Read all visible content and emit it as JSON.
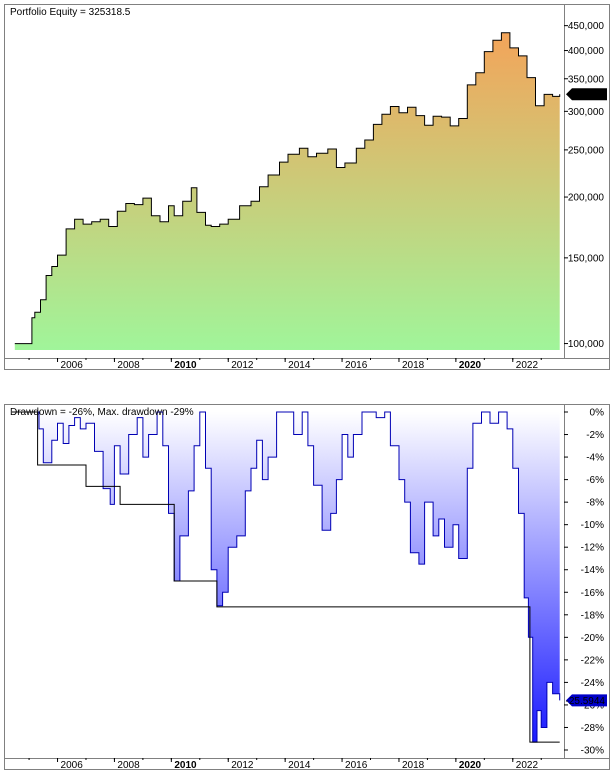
{
  "chart_data": [
    {
      "type": "area",
      "title": "Portfolio Equity = 325318.5",
      "yscale": "log",
      "ylim": [
        97000,
        480000
      ],
      "xlim": [
        2004.4,
        2023.8
      ],
      "grid": false,
      "colors": {
        "top": "#f3a45a",
        "bottom": "#a0f59a",
        "line": "#000000",
        "marker": "#000000"
      },
      "y_ticks": [
        "450,000",
        "400,000",
        "350,000",
        "300,000",
        "250,000",
        "200,000",
        "150,000",
        "100,000"
      ],
      "y_tick_values": [
        450000,
        400000,
        350000,
        300000,
        250000,
        200000,
        150000,
        100000
      ],
      "x_ticks": [
        "2006",
        "2008",
        "2010",
        "2012",
        "2014",
        "2016",
        "2018",
        "2020",
        "2022"
      ],
      "x_tick_values": [
        2006,
        2008,
        2010,
        2012,
        2014,
        2016,
        2018,
        2020,
        2022
      ],
      "bold_ticks": [
        "2010",
        "2020"
      ],
      "last_value_label": "325,318",
      "last_value": 325318,
      "x": [
        2004.5,
        2005.0,
        2005.1,
        2005.2,
        2005.4,
        2005.6,
        2005.8,
        2006.0,
        2006.3,
        2006.6,
        2006.9,
        2007.2,
        2007.5,
        2007.8,
        2008.1,
        2008.4,
        2008.7,
        2009.0,
        2009.3,
        2009.6,
        2009.9,
        2010.1,
        2010.4,
        2010.7,
        2010.9,
        2011.2,
        2011.4,
        2011.7,
        2012.0,
        2012.4,
        2012.8,
        2013.1,
        2013.4,
        2013.8,
        2014.1,
        2014.5,
        2014.8,
        2015.1,
        2015.5,
        2015.8,
        2016.1,
        2016.5,
        2016.8,
        2017.1,
        2017.4,
        2017.7,
        2018.0,
        2018.3,
        2018.6,
        2018.9,
        2019.2,
        2019.5,
        2019.8,
        2020.1,
        2020.4,
        2020.7,
        2021.0,
        2021.3,
        2021.6,
        2021.9,
        2022.2,
        2022.5,
        2022.8,
        2023.1,
        2023.4,
        2023.65
      ],
      "y": [
        100000,
        100000,
        113000,
        116000,
        123000,
        138000,
        144000,
        152000,
        172000,
        180000,
        176000,
        178000,
        180000,
        174000,
        187000,
        194000,
        193000,
        199000,
        183000,
        178000,
        192000,
        183000,
        196000,
        209000,
        186000,
        175000,
        174000,
        176000,
        180000,
        192000,
        196000,
        210000,
        222000,
        236000,
        245000,
        252000,
        242000,
        246000,
        251000,
        230000,
        235000,
        252000,
        262000,
        282000,
        296000,
        307000,
        298000,
        306000,
        294000,
        281000,
        293000,
        292000,
        280000,
        290000,
        340000,
        360000,
        398000,
        420000,
        435000,
        405000,
        390000,
        352000,
        308000,
        325000,
        322000,
        325318
      ]
    },
    {
      "type": "area",
      "title": "Drawdown = -26%, Max. drawdown -29%",
      "ylim": [
        -30,
        0
      ],
      "xlim": [
        2004.4,
        2023.8
      ],
      "grid": false,
      "colors": {
        "top": "#ffffff",
        "bottom": "#1a1aff",
        "line": "#0000b4",
        "max_line": "#000000",
        "marker": "#0000c8"
      },
      "y_ticks": [
        "0%",
        "-2%",
        "-4%",
        "-6%",
        "-8%",
        "-10%",
        "-12%",
        "-14%",
        "-16%",
        "-18%",
        "-20%",
        "-22%",
        "-24%",
        "-26%",
        "-28%",
        "-30%"
      ],
      "y_tick_values": [
        0,
        -2,
        -4,
        -6,
        -8,
        -10,
        -12,
        -14,
        -16,
        -18,
        -20,
        -22,
        -24,
        -26,
        -28,
        -30
      ],
      "x_ticks": [
        "2006",
        "2008",
        "2010",
        "2012",
        "2014",
        "2016",
        "2018",
        "2020",
        "2022"
      ],
      "x_tick_values": [
        2006,
        2008,
        2010,
        2012,
        2014,
        2016,
        2018,
        2020,
        2022
      ],
      "bold_ticks": [
        "2010",
        "2020"
      ],
      "last_value_label": "-25.5944",
      "last_value": -25.5944,
      "x": [
        2004.4,
        2005.2,
        2005.35,
        2005.5,
        2005.8,
        2006.0,
        2006.2,
        2006.4,
        2006.6,
        2006.8,
        2007.0,
        2007.3,
        2007.6,
        2007.85,
        2008.0,
        2008.2,
        2008.5,
        2008.8,
        2009.0,
        2009.2,
        2009.5,
        2009.7,
        2009.9,
        2010.1,
        2010.3,
        2010.6,
        2010.8,
        2011.0,
        2011.2,
        2011.4,
        2011.6,
        2011.8,
        2012.0,
        2012.3,
        2012.6,
        2012.8,
        2013.0,
        2013.2,
        2013.4,
        2013.7,
        2014.0,
        2014.3,
        2014.6,
        2014.8,
        2015.0,
        2015.3,
        2015.6,
        2015.8,
        2016.0,
        2016.2,
        2016.4,
        2016.7,
        2016.9,
        2017.2,
        2017.5,
        2017.7,
        2018.0,
        2018.2,
        2018.4,
        2018.7,
        2018.9,
        2019.2,
        2019.4,
        2019.6,
        2019.9,
        2020.1,
        2020.4,
        2020.6,
        2020.9,
        2021.2,
        2021.5,
        2021.8,
        2022.0,
        2022.2,
        2022.4,
        2022.55,
        2022.7,
        2022.85,
        2023.0,
        2023.2,
        2023.4,
        2023.65
      ],
      "y": [
        0,
        0,
        -1.5,
        -4.5,
        -2.5,
        -1.0,
        -2.8,
        -1.2,
        -0.5,
        -1.5,
        -1.0,
        -3.5,
        -6.8,
        -8.2,
        -3.0,
        -5.5,
        -2.0,
        -0.5,
        -4.0,
        -2.0,
        0,
        -3.0,
        -9.0,
        -15.0,
        -11.0,
        -7.0,
        -3.0,
        0,
        -5.0,
        -14.0,
        -17.2,
        -16.0,
        -12.0,
        -11.0,
        -7.0,
        -5.0,
        -2.5,
        -6.0,
        -4.0,
        0,
        0,
        -2.0,
        0,
        -3.0,
        -6.5,
        -10.5,
        -9.0,
        -6.0,
        -2.0,
        -4.0,
        -2.0,
        0,
        0,
        -0.5,
        0,
        -3.0,
        -6.0,
        -8.0,
        -12.5,
        -13.5,
        -8.0,
        -11.0,
        -9.5,
        -12.0,
        -10.0,
        -13.0,
        -5.0,
        -1.0,
        0,
        -1.0,
        0,
        -1.5,
        -5.0,
        -9.0,
        -16.5,
        -20.0,
        -29.3,
        -26.5,
        -28.0,
        -24.0,
        -25.0,
        -25.5944
      ],
      "max_dd_x": [
        2004.4,
        2005.3,
        2005.3,
        2007.0,
        2007.0,
        2008.2,
        2008.2,
        2010.1,
        2010.1,
        2011.6,
        2011.6,
        2022.6,
        2022.6,
        2023.65
      ],
      "max_dd_y": [
        0,
        0,
        -4.7,
        -4.7,
        -6.6,
        -6.6,
        -8.2,
        -8.2,
        -15.0,
        -15.0,
        -17.3,
        -17.3,
        -29.3,
        -29.3
      ]
    }
  ]
}
